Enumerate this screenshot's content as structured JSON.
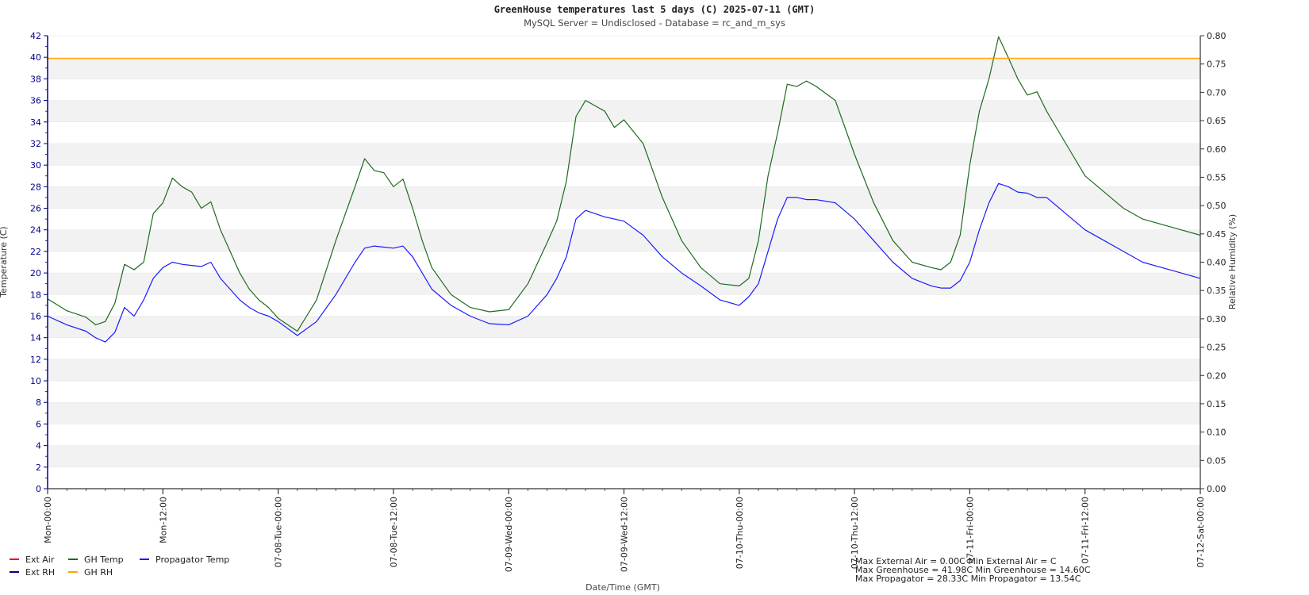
{
  "chart_data": {
    "type": "line",
    "title": "GreenHouse temperatures last 5     days (C) 2025-07-11 (GMT)",
    "subtitle": "MySQL Server = Undisclosed - Database = rc_and_m_sys",
    "xlabel": "Date/Time (GMT)",
    "ylabel_left": "Temperature (C)",
    "ylabel_right": "Relative Humidity (%)",
    "ylim_left": [
      0,
      42
    ],
    "ylim_right": [
      0.0,
      0.8
    ],
    "xlim_hours": [
      0,
      120
    ],
    "grid": "alternating horizontal bands",
    "left_ticks": [
      "0",
      "2",
      "4",
      "6",
      "8",
      "10",
      "12",
      "14",
      "16",
      "18",
      "20",
      "22",
      "24",
      "26",
      "28",
      "30",
      "32",
      "34",
      "36",
      "38",
      "40",
      "42"
    ],
    "right_ticks": [
      "0.00",
      "0.05",
      "0.10",
      "0.15",
      "0.20",
      "0.25",
      "0.30",
      "0.35",
      "0.40",
      "0.45",
      "0.50",
      "0.55",
      "0.60",
      "0.65",
      "0.70",
      "0.75",
      "0.80"
    ],
    "x_tick_labels": [
      "Mon-00:00",
      "Mon-12:00",
      "07-08-Tue-00:00",
      "07-08-Tue-12:00",
      "07-09-Wed-00:00",
      "07-09-Wed-12:00",
      "07-10-Thu-00:00",
      "07-10-Thu-12:00",
      "07-11-Fri-00:00",
      "07-11-Fri-12:00",
      "07-12-Sat-00:00"
    ],
    "legend_position": "bottom-left",
    "legend": [
      {
        "name": "Ext Air",
        "color": "#e8001c"
      },
      {
        "name": "GH Temp",
        "color": "#1e6b1e"
      },
      {
        "name": "Propagator Temp",
        "color": "#1a1aff"
      },
      {
        "name": "Ext RH",
        "color": "#00008b"
      },
      {
        "name": "GH RH",
        "color": "#ffa500"
      }
    ],
    "series": [
      {
        "name": "GH Temp",
        "axis": "left",
        "color": "#1e6b1e",
        "x": [
          0,
          2,
          4,
          5,
          6,
          7,
          8,
          9,
          10,
          11,
          12,
          13,
          14,
          15,
          16,
          17,
          18,
          19,
          20,
          21,
          22,
          23,
          24,
          26,
          28,
          30,
          32,
          33,
          34,
          35,
          36,
          37,
          38,
          39,
          40,
          42,
          44,
          46,
          48,
          50,
          52,
          53,
          54,
          55,
          56,
          57,
          58,
          59,
          60,
          62,
          64,
          66,
          68,
          70,
          72,
          73,
          74,
          75,
          76,
          77,
          78,
          79,
          80,
          82,
          84,
          86,
          88,
          90,
          92,
          93,
          94,
          95,
          96,
          97,
          98,
          99,
          100,
          101,
          102,
          103,
          104,
          106,
          108,
          110,
          112,
          114,
          116,
          118,
          120
        ],
        "values": [
          17.6,
          16.5,
          15.9,
          15.2,
          15.5,
          17.2,
          20.8,
          20.3,
          21.0,
          25.5,
          26.5,
          28.8,
          28.0,
          27.5,
          26.0,
          26.6,
          24.0,
          22.0,
          20.0,
          18.5,
          17.5,
          16.8,
          15.8,
          14.6,
          17.5,
          23.0,
          28.0,
          30.6,
          29.5,
          29.3,
          28.0,
          28.7,
          26.0,
          23.0,
          20.5,
          18.0,
          16.8,
          16.4,
          16.6,
          19.0,
          22.8,
          24.8,
          28.5,
          34.5,
          36.0,
          35.5,
          35.0,
          33.5,
          34.2,
          32.0,
          27.0,
          23.0,
          20.5,
          19.0,
          18.8,
          19.5,
          23.0,
          29.0,
          33.0,
          37.5,
          37.3,
          37.8,
          37.3,
          36.0,
          31.0,
          26.5,
          23.0,
          21.0,
          20.5,
          20.3,
          21.0,
          23.5,
          30.0,
          35.0,
          38.0,
          41.9,
          40.0,
          38.0,
          36.5,
          36.8,
          35.0,
          32.0,
          29.0,
          27.5,
          26.0,
          25.0,
          24.5,
          24.0,
          23.5
        ]
      },
      {
        "name": "Propagator Temp",
        "axis": "left",
        "color": "#1a1aff",
        "x": [
          0,
          2,
          4,
          5,
          6,
          7,
          8,
          9,
          10,
          11,
          12,
          13,
          14,
          15,
          16,
          17,
          18,
          19,
          20,
          21,
          22,
          23,
          24,
          26,
          28,
          30,
          32,
          33,
          34,
          35,
          36,
          37,
          38,
          39,
          40,
          42,
          44,
          46,
          48,
          50,
          52,
          53,
          54,
          55,
          56,
          57,
          58,
          59,
          60,
          62,
          64,
          66,
          68,
          70,
          72,
          73,
          74,
          75,
          76,
          77,
          78,
          79,
          80,
          82,
          84,
          86,
          88,
          90,
          92,
          93,
          94,
          95,
          96,
          97,
          98,
          99,
          100,
          101,
          102,
          103,
          104,
          106,
          108,
          110,
          112,
          114,
          116,
          118,
          120
        ],
        "values": [
          16.0,
          15.2,
          14.6,
          14.0,
          13.6,
          14.5,
          16.8,
          16.0,
          17.5,
          19.5,
          20.5,
          21.0,
          20.8,
          20.7,
          20.6,
          21.0,
          19.5,
          18.5,
          17.5,
          16.8,
          16.3,
          16.0,
          15.5,
          14.2,
          15.5,
          18.0,
          21.0,
          22.3,
          22.5,
          22.4,
          22.3,
          22.5,
          21.5,
          20.0,
          18.5,
          17.0,
          16.0,
          15.3,
          15.2,
          16.0,
          18.0,
          19.5,
          21.5,
          25.0,
          25.8,
          25.5,
          25.2,
          25.0,
          24.8,
          23.5,
          21.5,
          20.0,
          18.8,
          17.5,
          17.0,
          17.8,
          19.0,
          22.0,
          25.0,
          27.0,
          27.0,
          26.8,
          26.8,
          26.5,
          25.0,
          23.0,
          21.0,
          19.5,
          18.8,
          18.6,
          18.6,
          19.3,
          21.0,
          24.0,
          26.5,
          28.3,
          28.0,
          27.5,
          27.4,
          27.0,
          27.0,
          25.5,
          24.0,
          23.0,
          22.0,
          21.0,
          20.5,
          20.0,
          19.5
        ]
      },
      {
        "name": "GH RH",
        "axis": "right",
        "color": "#ffa500",
        "x": [
          0,
          120
        ],
        "values": [
          0.76,
          0.76
        ]
      }
    ],
    "summary_lines": [
      "Max External Air = 0.00C Min External Air = C",
      "Max Greenhouse = 41.98C Min Greenhouse = 14.60C",
      "Max Propagator = 28.33C Min Propagator = 13.54C"
    ]
  }
}
